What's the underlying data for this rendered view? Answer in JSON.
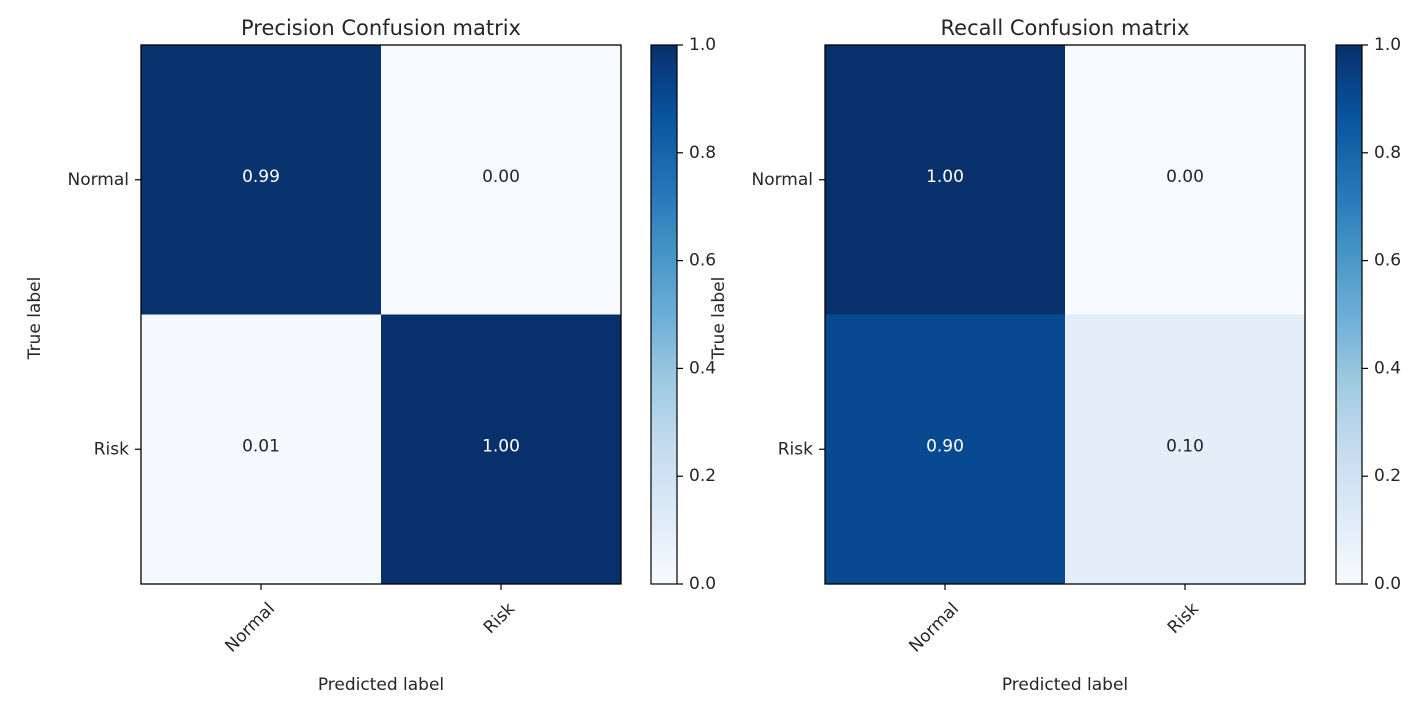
{
  "chart_data": [
    {
      "type": "heatmap",
      "title": "Precision Confusion matrix",
      "xlabel": "Predicted label",
      "ylabel": "True label",
      "x_categories": [
        "Normal",
        "Risk"
      ],
      "y_categories": [
        "Normal",
        "Risk"
      ],
      "values": [
        [
          0.99,
          0.0
        ],
        [
          0.01,
          1.0
        ]
      ],
      "cell_labels": [
        [
          "0.99",
          "0.00"
        ],
        [
          "0.01",
          "1.00"
        ]
      ],
      "colorscale": "Blues",
      "vlim": [
        0,
        1
      ],
      "colorbar_ticks": [
        "0.0",
        "0.2",
        "0.4",
        "0.6",
        "0.8",
        "1.0"
      ]
    },
    {
      "type": "heatmap",
      "title": "Recall Confusion matrix",
      "xlabel": "Predicted label",
      "ylabel": "True label",
      "x_categories": [
        "Normal",
        "Risk"
      ],
      "y_categories": [
        "Normal",
        "Risk"
      ],
      "values": [
        [
          1.0,
          0.0
        ],
        [
          0.9,
          0.1
        ]
      ],
      "cell_labels": [
        [
          "1.00",
          "0.00"
        ],
        [
          "0.90",
          "0.10"
        ]
      ],
      "colorscale": "Blues",
      "vlim": [
        0,
        1
      ],
      "colorbar_ticks": [
        "0.0",
        "0.2",
        "0.4",
        "0.6",
        "0.8",
        "1.0"
      ]
    }
  ]
}
